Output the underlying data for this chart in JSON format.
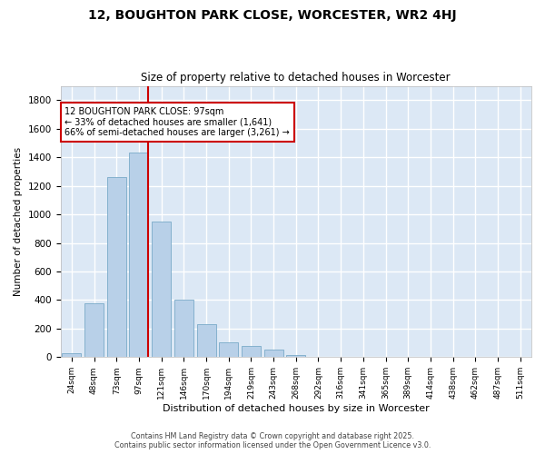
{
  "title_line1": "12, BOUGHTON PARK CLOSE, WORCESTER, WR2 4HJ",
  "title_line2": "Size of property relative to detached houses in Worcester",
  "xlabel": "Distribution of detached houses by size in Worcester",
  "ylabel": "Number of detached properties",
  "bar_color": "#b8d0e8",
  "bar_edge_color": "#7aaac8",
  "categories": [
    "24sqm",
    "48sqm",
    "73sqm",
    "97sqm",
    "121sqm",
    "146sqm",
    "170sqm",
    "194sqm",
    "219sqm",
    "243sqm",
    "268sqm",
    "292sqm",
    "316sqm",
    "341sqm",
    "365sqm",
    "389sqm",
    "414sqm",
    "438sqm",
    "462sqm",
    "487sqm",
    "511sqm"
  ],
  "values": [
    30,
    380,
    1260,
    1430,
    950,
    400,
    230,
    105,
    80,
    55,
    18,
    0,
    0,
    0,
    0,
    0,
    0,
    0,
    0,
    0,
    0
  ],
  "ylim": [
    0,
    1900
  ],
  "yticks": [
    0,
    200,
    400,
    600,
    800,
    1000,
    1200,
    1400,
    1600,
    1800
  ],
  "property_bin_index": 3,
  "annotation_title": "12 BOUGHTON PARK CLOSE: 97sqm",
  "annotation_line2": "← 33% of detached houses are smaller (1,641)",
  "annotation_line3": "66% of semi-detached houses are larger (3,261) →",
  "vline_color": "#cc0000",
  "annotation_box_edgecolor": "#cc0000",
  "background_color": "#dce8f5",
  "grid_color": "#ffffff",
  "footer_line1": "Contains HM Land Registry data © Crown copyright and database right 2025.",
  "footer_line2": "Contains public sector information licensed under the Open Government Licence v3.0."
}
